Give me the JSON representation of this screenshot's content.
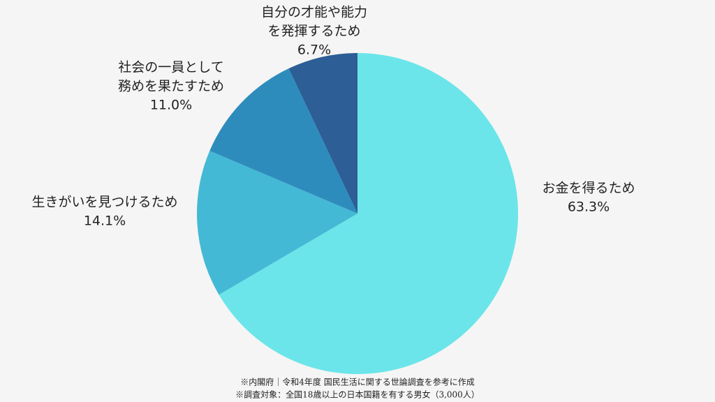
{
  "chart_data": {
    "type": "pie",
    "categories": [
      [
        "お金を得るため"
      ],
      [
        "生きがいを見つけるため"
      ],
      [
        "社会の一員として",
        "務めを果たすため"
      ],
      [
        "自分の才能や能力",
        "を発揮するため"
      ]
    ],
    "values": [
      63.3,
      14.1,
      11.0,
      6.7
    ],
    "value_labels": [
      "63.3%",
      "14.1%",
      "11.0%",
      "6.7%"
    ],
    "colors": [
      "#6be5e9",
      "#44b9d5",
      "#2e8cbd",
      "#2d5e96"
    ],
    "source": [
      "※内閣府｜令和4年度 国民生活に関する世論調査を参考に作成",
      "※調査対象：全国18歳以上の日本国籍を有する男女（3,000人）"
    ]
  }
}
